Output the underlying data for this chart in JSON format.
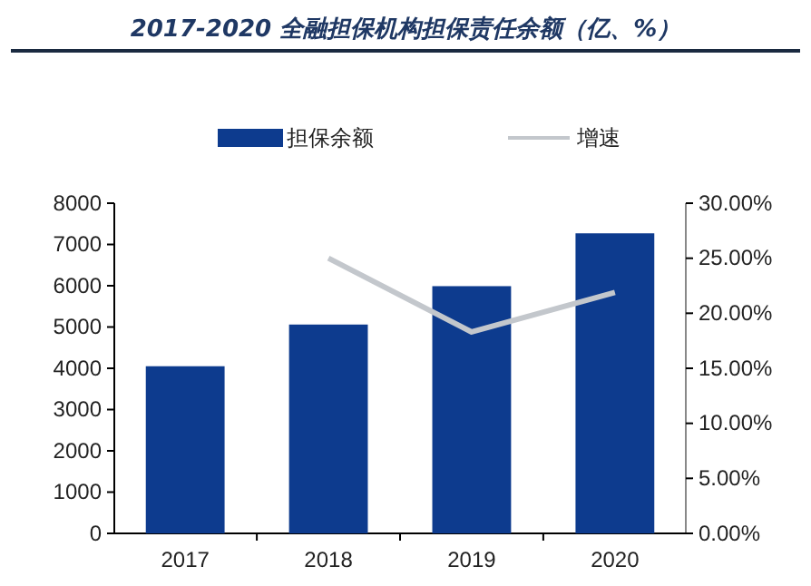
{
  "chart_data": {
    "type": "bar",
    "title": "2017-2020 全融担保机构担保责任余额（亿、%）",
    "categories": [
      "2017",
      "2018",
      "2019",
      "2020"
    ],
    "series": [
      {
        "name": "担保余额",
        "color": "#0d3b8e",
        "values": [
          4050,
          5060,
          5990,
          7270
        ]
      },
      {
        "name": "增速",
        "type": "line",
        "axis": "y2",
        "color": "#c3c7cc",
        "values": [
          null,
          25.0,
          18.3,
          21.9
        ]
      }
    ],
    "ylim": [
      0,
      8000
    ],
    "yticks": [
      0,
      1000,
      2000,
      3000,
      4000,
      5000,
      6000,
      7000,
      8000
    ],
    "y2lim": [
      0,
      30
    ],
    "y2ticks": [
      {
        "value": 0,
        "label": "0.00%"
      },
      {
        "value": 5,
        "label": "5.00%"
      },
      {
        "value": 10,
        "label": "10.00%"
      },
      {
        "value": 15,
        "label": "15.00%"
      },
      {
        "value": 20,
        "label": "20.00%"
      },
      {
        "value": 25,
        "label": "25.00%"
      },
      {
        "value": 30,
        "label": "30.00%"
      }
    ],
    "legend": "top",
    "grid": false,
    "marker": "none",
    "line_style": "solid"
  }
}
